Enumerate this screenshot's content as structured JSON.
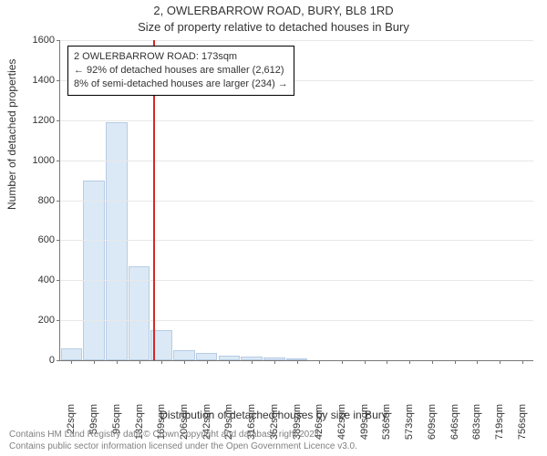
{
  "title_line1": "2, OWLERBARROW ROAD, BURY, BL8 1RD",
  "title_line2": "Size of property relative to detached houses in Bury",
  "y_axis_label": "Number of detached properties",
  "x_axis_label": "Distribution of detached houses by size in Bury",
  "chart": {
    "type": "histogram",
    "xlim": [
      0,
      21
    ],
    "ylim": [
      0,
      1600
    ],
    "ytick_step": 200,
    "bar_fill": "#dbe9f6",
    "bar_stroke": "#b7cbe3",
    "grid_color": "#e8e8e8",
    "axis_color": "#777777",
    "background_color": "#ffffff",
    "bar_width": 0.95,
    "x_categories": [
      "22sqm",
      "59sqm",
      "95sqm",
      "132sqm",
      "169sqm",
      "206sqm",
      "242sqm",
      "279sqm",
      "316sqm",
      "352sqm",
      "389sqm",
      "426sqm",
      "462sqm",
      "499sqm",
      "536sqm",
      "573sqm",
      "609sqm",
      "646sqm",
      "683sqm",
      "719sqm",
      "756sqm"
    ],
    "values": [
      60,
      900,
      1190,
      470,
      150,
      50,
      35,
      25,
      20,
      15,
      10,
      0,
      0,
      0,
      0,
      0,
      0,
      0,
      0,
      0,
      0
    ],
    "tick_fontsize": 11,
    "title_fontsize": 13,
    "label_fontsize": 12
  },
  "marker": {
    "position_category_index": 4.12,
    "color": "#d62728",
    "callout_lines": [
      "2 OWLERBARROW ROAD: 173sqm",
      "← 92% of detached houses are smaller (2,612)",
      "8% of semi-detached houses are larger (234) →"
    ],
    "callout_border": "#000000",
    "callout_bg": "#ffffff"
  },
  "footer_lines": [
    "Contains HM Land Registry data © Crown copyright and database right 2024.",
    "Contains public sector information licensed under the Open Government Licence v3.0."
  ]
}
